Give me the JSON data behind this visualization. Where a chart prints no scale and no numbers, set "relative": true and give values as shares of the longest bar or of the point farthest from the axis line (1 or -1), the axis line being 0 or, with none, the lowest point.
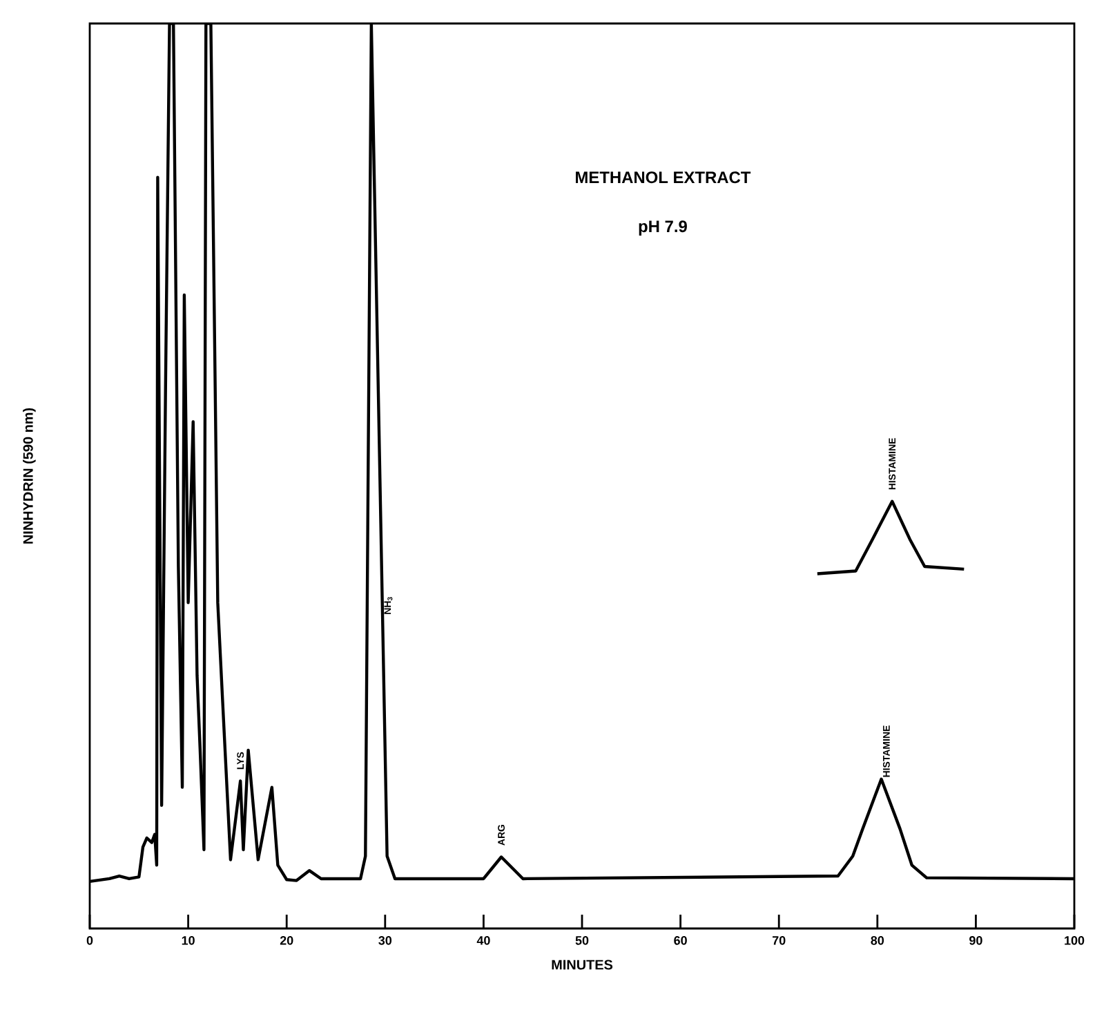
{
  "chart_data": {
    "type": "line",
    "title": "METHANOL EXTRACT",
    "subtitle": "pH 7.9",
    "xlabel": "MINUTES",
    "ylabel": "NINHYDRIN  (590 nm)",
    "relative": true,
    "marker": "none",
    "line_style": "solid",
    "xlim": [
      0,
      100
    ],
    "xticks": [
      0,
      10,
      20,
      30,
      40,
      50,
      60,
      70,
      80,
      90,
      100
    ],
    "series": [
      {
        "color": "#000000",
        "x": [
          0,
          2,
          3,
          4,
          5,
          5.4,
          5.8,
          6.3,
          6.6,
          6.8,
          6.9,
          7.3,
          7.7,
          8.1,
          8.5,
          9.0,
          9.4,
          9.6,
          10.0,
          10.5,
          10.9,
          11.2,
          11.6,
          11.8,
          12.3,
          13.0,
          13.5,
          14.3,
          15.3,
          15.6,
          16.1,
          17.1,
          18.5,
          19.1,
          20,
          21.0,
          22.3,
          23.5,
          27.5,
          28.0,
          28.6,
          30.2,
          31,
          40,
          41.8,
          44,
          76,
          77.5,
          78.5,
          80.4,
          82.3,
          83.5,
          85,
          100
        ],
        "values": [
          0.052,
          0.055,
          0.058,
          0.055,
          0.057,
          0.09,
          0.1,
          0.095,
          0.104,
          0.07,
          0.83,
          0.136,
          0.6,
          1.0,
          1.0,
          0.4,
          0.156,
          0.7,
          0.36,
          0.56,
          0.28,
          0.2,
          0.087,
          1.0,
          1.0,
          0.36,
          0.25,
          0.076,
          0.163,
          0.087,
          0.197,
          0.076,
          0.156,
          0.07,
          0.054,
          0.053,
          0.064,
          0.055,
          0.055,
          0.08,
          1.0,
          0.08,
          0.055,
          0.055,
          0.079,
          0.055,
          0.058,
          0.08,
          0.11,
          0.165,
          0.11,
          0.07,
          0.056,
          0.055
        ]
      },
      {
        "color": "#000000",
        "x": [
          73.9,
          77.8,
          79.5,
          81.5,
          83.3,
          84.8,
          88.8
        ],
        "values": [
          0.392,
          0.395,
          0.43,
          0.472,
          0.43,
          0.4,
          0.397
        ]
      }
    ],
    "annotations": [
      {
        "text": "LYS",
        "x": 15.3,
        "y": 0.163
      },
      {
        "text": "NH$_{3}$",
        "x": 29.74,
        "y": 0.345
      },
      {
        "text": "ARG",
        "x": 41.8,
        "y": 0.079
      },
      {
        "text": "HISTAMINE",
        "x": 80.4,
        "y": 0.165
      },
      {
        "text": "HISTAMINE",
        "x": 81.5,
        "y": 0.472
      }
    ]
  }
}
